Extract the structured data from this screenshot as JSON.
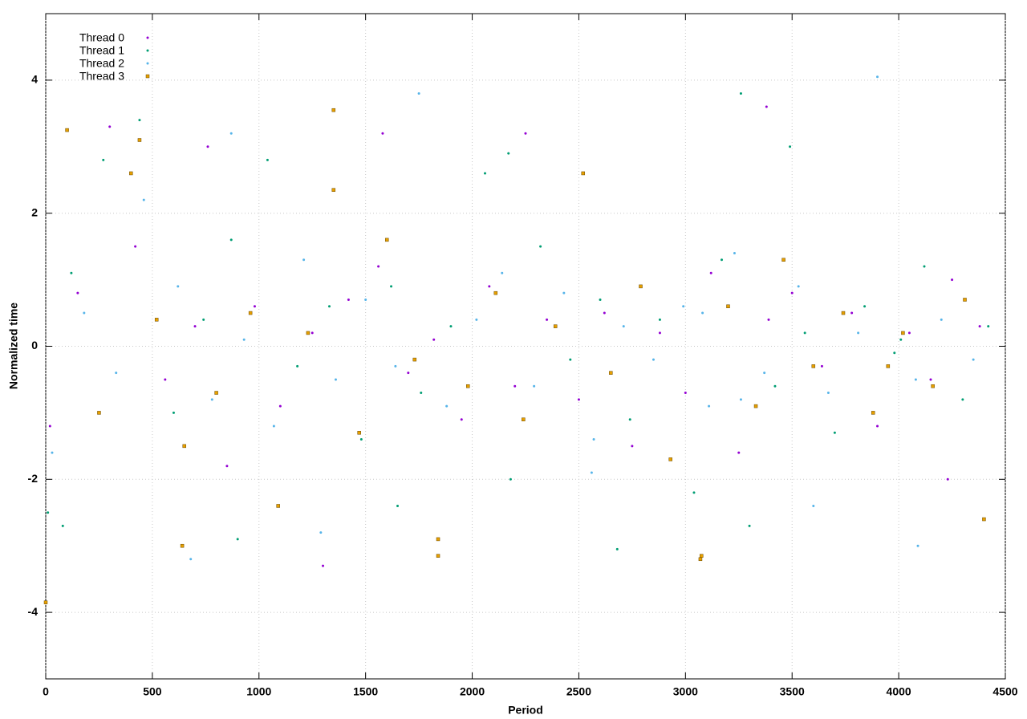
{
  "chart_data": {
    "type": "scatter",
    "xlabel": "Period",
    "ylabel": "Normalized time",
    "xlim": [
      0,
      4500
    ],
    "xticks": [
      0,
      500,
      1000,
      1500,
      2000,
      2500,
      3000,
      3500,
      4000,
      4500
    ],
    "ylim": [
      -5,
      5
    ],
    "yticks": [
      -4,
      -2,
      0,
      2,
      4
    ],
    "grid": true,
    "legend": "upper-left",
    "series": [
      {
        "name": "Thread 0",
        "color": "#9400d3",
        "marker": "dot",
        "x": [
          20,
          150,
          300,
          420,
          560,
          700,
          850,
          980,
          1100,
          1250,
          1300,
          1420,
          1560,
          1700,
          1820,
          1950,
          2080,
          2200,
          2250,
          2350,
          2500,
          2620,
          2750,
          2880,
          3000,
          3120,
          3250,
          3380,
          3500,
          3640,
          3780,
          3900,
          4050,
          4150,
          4250,
          4380,
          760,
          1580,
          3390,
          4230
        ],
        "values": [
          -1.2,
          0.8,
          3.3,
          1.5,
          -0.5,
          0.3,
          -1.8,
          0.6,
          -0.9,
          0.2,
          -3.3,
          0.7,
          1.2,
          -0.4,
          0.1,
          -1.1,
          0.9,
          -0.6,
          3.2,
          0.4,
          -0.8,
          0.5,
          -1.5,
          0.2,
          -0.7,
          1.1,
          -1.6,
          3.6,
          0.8,
          -0.3,
          0.5,
          -1.2,
          0.2,
          -0.5,
          1.0,
          0.3,
          3.0,
          3.2,
          0.4,
          -2.0
        ]
      },
      {
        "name": "Thread 1",
        "color": "#009e73",
        "marker": "dot",
        "x": [
          10,
          120,
          270,
          440,
          600,
          740,
          870,
          1040,
          1180,
          1330,
          1480,
          1620,
          1760,
          1900,
          2060,
          2180,
          2320,
          2460,
          2600,
          2740,
          2880,
          3040,
          3170,
          3260,
          3420,
          3560,
          3700,
          3840,
          3980,
          4120,
          4300,
          4420,
          80,
          900,
          1650,
          2170,
          3300,
          3490,
          2680,
          4010
        ],
        "values": [
          -2.5,
          1.1,
          2.8,
          3.4,
          -1.0,
          0.4,
          1.6,
          2.8,
          -0.3,
          0.6,
          -1.4,
          0.9,
          -0.7,
          0.3,
          2.6,
          -2.0,
          1.5,
          -0.2,
          0.7,
          -1.1,
          0.4,
          -2.2,
          1.3,
          3.8,
          -0.6,
          0.2,
          -1.3,
          0.6,
          -0.1,
          1.2,
          -0.8,
          0.3,
          -2.7,
          -2.9,
          -2.4,
          2.9,
          -2.7,
          3.0,
          -3.05,
          0.1
        ]
      },
      {
        "name": "Thread 2",
        "color": "#56b4e9",
        "marker": "dot",
        "x": [
          30,
          180,
          330,
          460,
          620,
          780,
          930,
          1070,
          1210,
          1360,
          1500,
          1640,
          1750,
          1880,
          2020,
          2140,
          2290,
          2430,
          2570,
          2710,
          2850,
          2990,
          3110,
          3230,
          3370,
          3530,
          3670,
          3810,
          3900,
          4080,
          4200,
          4350,
          680,
          870,
          1290,
          2560,
          3080,
          3600,
          4090,
          3260
        ],
        "values": [
          -1.6,
          0.5,
          -0.4,
          2.2,
          0.9,
          -0.8,
          0.1,
          -1.2,
          1.3,
          -0.5,
          0.7,
          -0.3,
          3.8,
          -0.9,
          0.4,
          1.1,
          -0.6,
          0.8,
          -1.4,
          0.3,
          -0.2,
          0.6,
          -0.9,
          1.4,
          -0.4,
          0.9,
          -0.7,
          0.2,
          4.05,
          -0.5,
          0.4,
          -0.2,
          -3.2,
          3.2,
          -2.8,
          -1.9,
          0.5,
          -2.4,
          -3.0,
          -0.8
        ]
      },
      {
        "name": "Thread 3",
        "color": "#e69f00",
        "marker": "square",
        "x": [
          0,
          100,
          250,
          400,
          520,
          650,
          800,
          960,
          1090,
          1230,
          1350,
          1470,
          1600,
          1730,
          1840,
          1980,
          2110,
          2240,
          2390,
          2520,
          2650,
          2790,
          2930,
          3070,
          3200,
          3330,
          3460,
          3600,
          3740,
          3880,
          4020,
          4160,
          4310,
          4400,
          1350,
          440,
          1840,
          3075,
          640,
          3950
        ],
        "values": [
          -3.85,
          3.25,
          -1.0,
          2.6,
          0.4,
          -1.5,
          -0.7,
          0.5,
          -2.4,
          0.2,
          3.55,
          -1.3,
          1.6,
          -0.2,
          -3.15,
          -0.6,
          0.8,
          -1.1,
          0.3,
          2.6,
          -0.4,
          0.9,
          -1.7,
          -3.2,
          0.6,
          -0.9,
          1.3,
          -0.3,
          0.5,
          -1.0,
          0.2,
          -0.6,
          0.7,
          -2.6,
          2.35,
          3.1,
          -2.9,
          -3.15,
          -3.0,
          -0.3
        ]
      }
    ]
  }
}
